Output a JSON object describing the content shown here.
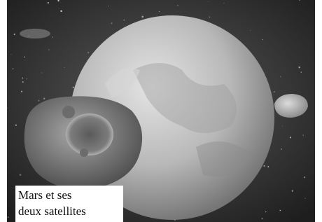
{
  "caption": {
    "lines": [
      "Mars et ses",
      "deux satellites"
    ]
  }
}
